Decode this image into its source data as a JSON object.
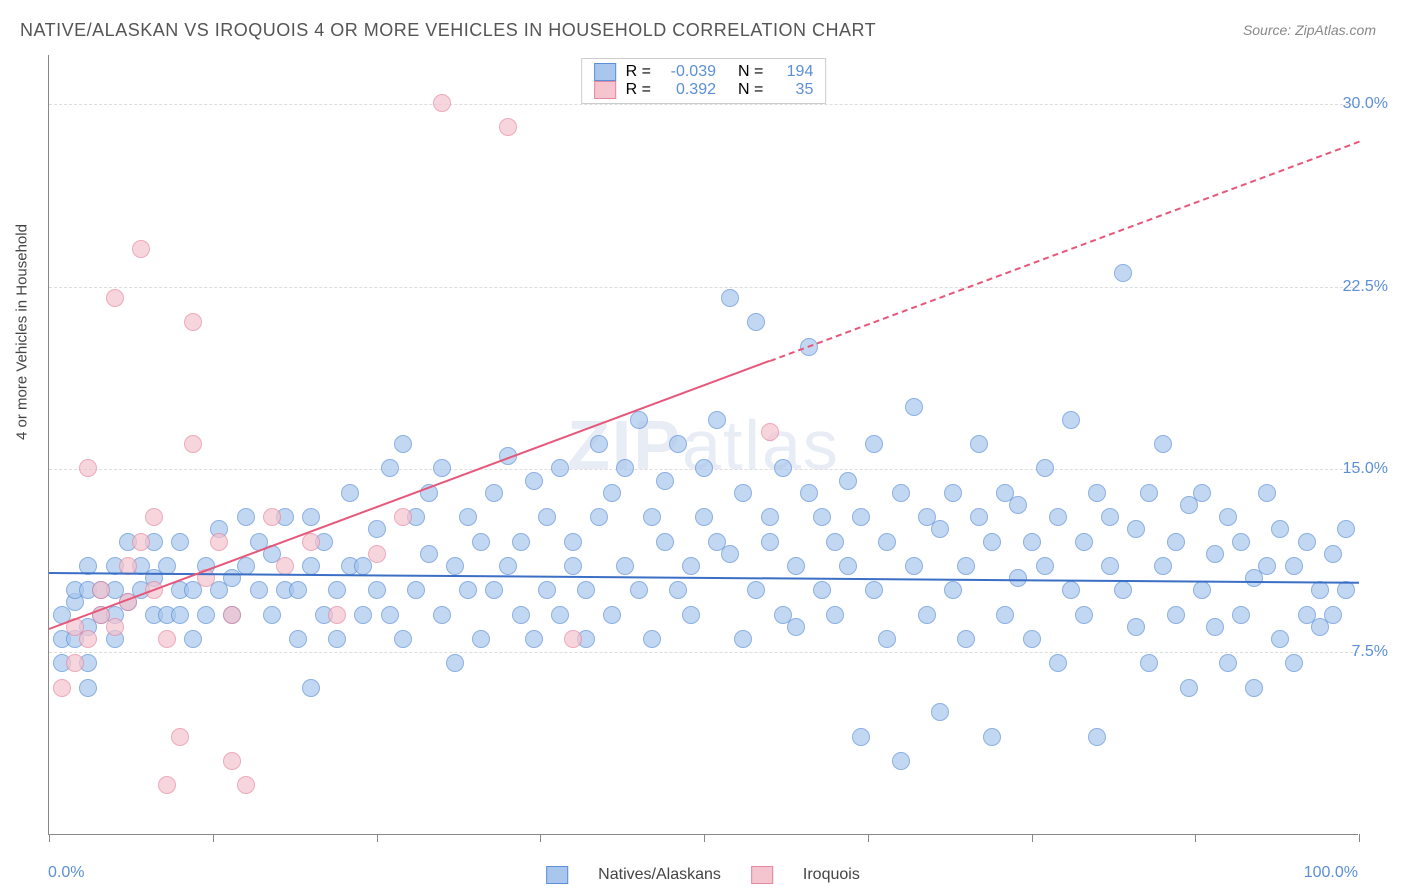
{
  "title": "NATIVE/ALASKAN VS IROQUOIS 4 OR MORE VEHICLES IN HOUSEHOLD CORRELATION CHART",
  "source": "Source: ZipAtlas.com",
  "ylabel": "4 or more Vehicles in Household",
  "watermark_a": "ZIP",
  "watermark_b": "atlas",
  "chart": {
    "type": "scatter",
    "xlim": [
      0,
      100
    ],
    "ylim": [
      0,
      32
    ],
    "yticks": [
      7.5,
      15.0,
      22.5,
      30.0
    ],
    "ytick_labels": [
      "7.5%",
      "15.0%",
      "22.5%",
      "30.0%"
    ],
    "xticks": [
      0,
      12.5,
      25,
      37.5,
      50,
      62.5,
      75,
      87.5,
      100
    ],
    "xaxis_label_left": "0.0%",
    "xaxis_label_right": "100.0%",
    "background_color": "#ffffff",
    "grid_color": "#dddddd",
    "series": [
      {
        "name": "Natives/Alaskans",
        "label": "Natives/Alaskans",
        "fill": "#a9c7ec",
        "stroke": "#5b8fd6",
        "marker_radius": 9,
        "opacity": 0.7,
        "R": "-0.039",
        "N": "194",
        "regression": {
          "x1": 0,
          "y1": 10.8,
          "x2": 100,
          "y2": 10.4,
          "solid": true,
          "color": "#3b6fc6",
          "width": 2.5
        },
        "points": [
          [
            1,
            7
          ],
          [
            1,
            8
          ],
          [
            1,
            9
          ],
          [
            2,
            9.5
          ],
          [
            2,
            8
          ],
          [
            2,
            10
          ],
          [
            3,
            6
          ],
          [
            3,
            7
          ],
          [
            3,
            8.5
          ],
          [
            3,
            10
          ],
          [
            3,
            11
          ],
          [
            4,
            9
          ],
          [
            4,
            10
          ],
          [
            5,
            8
          ],
          [
            5,
            9
          ],
          [
            5,
            10
          ],
          [
            5,
            11
          ],
          [
            6,
            9.5
          ],
          [
            6,
            12
          ],
          [
            7,
            10
          ],
          [
            7,
            11
          ],
          [
            8,
            9
          ],
          [
            8,
            10.5
          ],
          [
            8,
            12
          ],
          [
            9,
            9
          ],
          [
            9,
            11
          ],
          [
            10,
            9
          ],
          [
            10,
            10
          ],
          [
            10,
            12
          ],
          [
            11,
            8
          ],
          [
            11,
            10
          ],
          [
            12,
            9
          ],
          [
            12,
            11
          ],
          [
            13,
            10
          ],
          [
            13,
            12.5
          ],
          [
            14,
            9
          ],
          [
            14,
            10.5
          ],
          [
            15,
            11
          ],
          [
            15,
            13
          ],
          [
            16,
            10
          ],
          [
            16,
            12
          ],
          [
            17,
            9
          ],
          [
            17,
            11.5
          ],
          [
            18,
            10
          ],
          [
            18,
            13
          ],
          [
            19,
            8
          ],
          [
            19,
            10
          ],
          [
            20,
            6
          ],
          [
            20,
            11
          ],
          [
            20,
            13
          ],
          [
            21,
            9
          ],
          [
            21,
            12
          ],
          [
            22,
            8
          ],
          [
            22,
            10
          ],
          [
            23,
            11
          ],
          [
            23,
            14
          ],
          [
            24,
            9
          ],
          [
            24,
            11
          ],
          [
            25,
            10
          ],
          [
            25,
            12.5
          ],
          [
            26,
            9
          ],
          [
            26,
            15
          ],
          [
            27,
            8
          ],
          [
            27,
            16
          ],
          [
            28,
            10
          ],
          [
            28,
            13
          ],
          [
            29,
            11.5
          ],
          [
            29,
            14
          ],
          [
            30,
            9
          ],
          [
            30,
            15
          ],
          [
            31,
            7
          ],
          [
            31,
            11
          ],
          [
            32,
            10
          ],
          [
            32,
            13
          ],
          [
            33,
            8
          ],
          [
            33,
            12
          ],
          [
            34,
            10
          ],
          [
            34,
            14
          ],
          [
            35,
            11
          ],
          [
            35,
            15.5
          ],
          [
            36,
            9
          ],
          [
            36,
            12
          ],
          [
            37,
            8
          ],
          [
            37,
            14.5
          ],
          [
            38,
            10
          ],
          [
            38,
            13
          ],
          [
            39,
            9
          ],
          [
            39,
            15
          ],
          [
            40,
            11
          ],
          [
            40,
            12
          ],
          [
            41,
            8
          ],
          [
            41,
            10
          ],
          [
            42,
            13
          ],
          [
            42,
            16
          ],
          [
            43,
            9
          ],
          [
            43,
            14
          ],
          [
            44,
            11
          ],
          [
            44,
            15
          ],
          [
            45,
            10
          ],
          [
            45,
            17
          ],
          [
            46,
            8
          ],
          [
            46,
            13
          ],
          [
            47,
            12
          ],
          [
            47,
            14.5
          ],
          [
            48,
            10
          ],
          [
            48,
            16
          ],
          [
            49,
            9
          ],
          [
            49,
            11
          ],
          [
            50,
            13
          ],
          [
            50,
            15
          ],
          [
            51,
            12
          ],
          [
            51,
            17
          ],
          [
            52,
            22
          ],
          [
            52,
            11.5
          ],
          [
            53,
            8
          ],
          [
            53,
            14
          ],
          [
            54,
            10
          ],
          [
            54,
            21
          ],
          [
            55,
            12
          ],
          [
            55,
            13
          ],
          [
            56,
            9
          ],
          [
            56,
            15
          ],
          [
            57,
            8.5
          ],
          [
            57,
            11
          ],
          [
            58,
            14
          ],
          [
            58,
            20
          ],
          [
            59,
            10
          ],
          [
            59,
            13
          ],
          [
            60,
            9
          ],
          [
            60,
            12
          ],
          [
            61,
            11
          ],
          [
            61,
            14.5
          ],
          [
            62,
            4
          ],
          [
            62,
            13
          ],
          [
            63,
            10
          ],
          [
            63,
            16
          ],
          [
            64,
            8
          ],
          [
            64,
            12
          ],
          [
            65,
            3
          ],
          [
            65,
            14
          ],
          [
            66,
            11
          ],
          [
            66,
            17.5
          ],
          [
            67,
            9
          ],
          [
            67,
            13
          ],
          [
            68,
            5
          ],
          [
            68,
            12.5
          ],
          [
            69,
            10
          ],
          [
            69,
            14
          ],
          [
            70,
            8
          ],
          [
            70,
            11
          ],
          [
            71,
            13
          ],
          [
            71,
            16
          ],
          [
            72,
            4
          ],
          [
            72,
            12
          ],
          [
            73,
            9
          ],
          [
            73,
            14
          ],
          [
            74,
            10.5
          ],
          [
            74,
            13.5
          ],
          [
            75,
            8
          ],
          [
            75,
            12
          ],
          [
            76,
            11
          ],
          [
            76,
            15
          ],
          [
            77,
            7
          ],
          [
            77,
            13
          ],
          [
            78,
            10
          ],
          [
            78,
            17
          ],
          [
            79,
            9
          ],
          [
            79,
            12
          ],
          [
            80,
            4
          ],
          [
            80,
            14
          ],
          [
            81,
            11
          ],
          [
            81,
            13
          ],
          [
            82,
            23
          ],
          [
            82,
            10
          ],
          [
            83,
            8.5
          ],
          [
            83,
            12.5
          ],
          [
            84,
            7
          ],
          [
            84,
            14
          ],
          [
            85,
            11
          ],
          [
            85,
            16
          ],
          [
            86,
            9
          ],
          [
            86,
            12
          ],
          [
            87,
            6
          ],
          [
            87,
            13.5
          ],
          [
            88,
            10
          ],
          [
            88,
            14
          ],
          [
            89,
            8.5
          ],
          [
            89,
            11.5
          ],
          [
            90,
            7
          ],
          [
            90,
            13
          ],
          [
            91,
            9
          ],
          [
            91,
            12
          ],
          [
            92,
            6
          ],
          [
            92,
            10.5
          ],
          [
            93,
            11
          ],
          [
            93,
            14
          ],
          [
            94,
            8
          ],
          [
            94,
            12.5
          ],
          [
            95,
            7
          ],
          [
            95,
            11
          ],
          [
            96,
            9
          ],
          [
            96,
            12
          ],
          [
            97,
            8.5
          ],
          [
            97,
            10
          ],
          [
            98,
            9
          ],
          [
            98,
            11.5
          ],
          [
            99,
            10
          ],
          [
            99,
            12.5
          ]
        ]
      },
      {
        "name": "Iroquois",
        "label": "Iroquois",
        "fill": "#f4c4cf",
        "stroke": "#e6879f",
        "marker_radius": 9,
        "opacity": 0.7,
        "R": "0.392",
        "N": "35",
        "regression": {
          "x1": 0,
          "y1": 8.5,
          "x2": 100,
          "y2": 28.5,
          "solid_until": 55,
          "color": "#e6577a",
          "width": 2
        },
        "points": [
          [
            1,
            6
          ],
          [
            2,
            7
          ],
          [
            2,
            8.5
          ],
          [
            3,
            8
          ],
          [
            3,
            15
          ],
          [
            4,
            9
          ],
          [
            4,
            10
          ],
          [
            5,
            22
          ],
          [
            5,
            8.5
          ],
          [
            6,
            9.5
          ],
          [
            6,
            11
          ],
          [
            7,
            24
          ],
          [
            7,
            12
          ],
          [
            8,
            10
          ],
          [
            8,
            13
          ],
          [
            9,
            2
          ],
          [
            9,
            8
          ],
          [
            10,
            4
          ],
          [
            11,
            16
          ],
          [
            11,
            21
          ],
          [
            12,
            10.5
          ],
          [
            13,
            12
          ],
          [
            14,
            9
          ],
          [
            14,
            3
          ],
          [
            15,
            2
          ],
          [
            17,
            13
          ],
          [
            18,
            11
          ],
          [
            20,
            12
          ],
          [
            22,
            9
          ],
          [
            25,
            11.5
          ],
          [
            27,
            13
          ],
          [
            30,
            30
          ],
          [
            35,
            29
          ],
          [
            40,
            8
          ],
          [
            55,
            16.5
          ]
        ]
      }
    ]
  },
  "legend": {
    "r_label": "R =",
    "n_label": "N ="
  },
  "bottom_legend": {
    "a": "Natives/Alaskans",
    "b": "Iroquois"
  }
}
